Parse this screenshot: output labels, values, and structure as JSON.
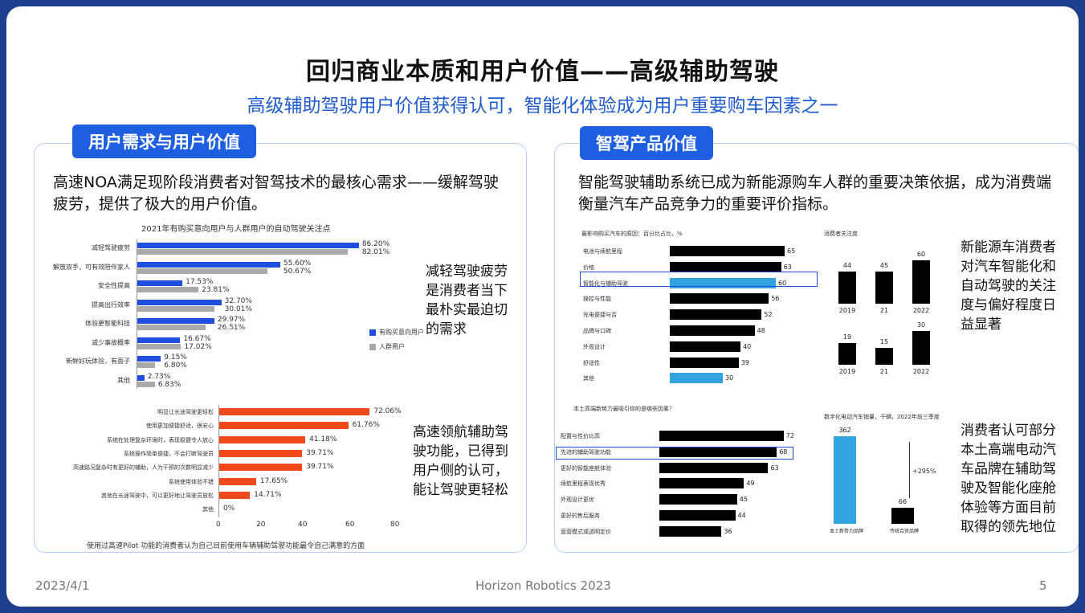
{
  "header": {
    "title": "回归商业本质和用户价值——高级辅助驾驶",
    "subtitle": "高级辅助驾驶用户价值获得认可，智能化体验成为用户重要购车因素之一"
  },
  "left_panel": {
    "tag": "用户需求与用户价值",
    "description": "高速NOA满足现阶段消费者对智驾技术的最核心需求——缓解驾驶疲劳，提供了极大的用户价值。",
    "chart1": {
      "title": "2021年有购买意向用户与人群用户的自动驾驶关注点",
      "rows": [
        {
          "label": "减轻驾驶疲劳",
          "v1": "86.20%",
          "v2": "82.01%"
        },
        {
          "label": "解放双手，可有效陪伴家人",
          "v1": "55.60%",
          "v2": "50.67%"
        },
        {
          "label": "安全性提高",
          "v1": "17.53%",
          "v2": "23.81%"
        },
        {
          "label": "提高出行效率",
          "v1": "32.70%",
          "v2": "30.01%"
        },
        {
          "label": "体验更智能科技",
          "v1": "29.97%",
          "v2": "26.51%"
        },
        {
          "label": "减少事故概率",
          "v1": "16.67%",
          "v2": "17.02%"
        },
        {
          "label": "新鲜好玩体验，有面子",
          "v1": "9.15%",
          "v2": "6.80%"
        },
        {
          "label": "其他",
          "v1": "2.73%",
          "v2": "6.83%"
        }
      ],
      "legend": [
        "有购买意向用户",
        "人群用户"
      ],
      "note": "减轻驾驶疲劳是消费者当下最朴实最迫切的需求",
      "colors": {
        "primary": "#1f4fe0",
        "secondary": "#aaaaaa"
      }
    },
    "chart2": {
      "rows": [
        {
          "label": "明显让长途驾驶更轻松",
          "v": "72.06%"
        },
        {
          "label": "使用更加便捷舒适，很安心",
          "v": "61.76%"
        },
        {
          "label": "系统在处理复杂环境时，表现稳健令人放心",
          "v": "41.18%"
        },
        {
          "label": "系统操作简单便捷，不会打断驾驶员",
          "v": "39.71%"
        },
        {
          "label": "高速路况复杂时有更好的辅助，人为干预的次数明显减少",
          "v": "39.71%"
        },
        {
          "label": "系统使用体验不错",
          "v": "17.65%"
        },
        {
          "label": "其他在长途驾驶中，可以更好地让驾驶员放松",
          "v": "14.71%"
        },
        {
          "label": "其他",
          "v": "0%"
        }
      ],
      "ticks": [
        "0",
        "20",
        "40",
        "60",
        "80"
      ],
      "caption": "使用过高速Pilot 功能的消费者认为自己目前使用车辆辅助驾驶功能最令自己满意的方面",
      "note": "高速领航辅助驾驶功能，已得到用户侧的认可，能让驾驶更轻松",
      "color": "#f04a1c"
    }
  },
  "right_panel": {
    "tag": "智驾产品价值",
    "description": "智能驾驶辅助系统已成为新能源购车人群的重要决策依据，成为消费端衡量汽车产品竞争力的重要评价指标。",
    "chart1": {
      "title": "最影响购买汽车的原因：百分比占比，%",
      "side_title": "消费者关注度",
      "rows": [
        {
          "label": "电池与续航里程",
          "v": "65"
        },
        {
          "label": "价格",
          "v": "63"
        },
        {
          "label": "智能化与辅助驾驶",
          "v": "60"
        },
        {
          "label": "操控与性能",
          "v": "56"
        },
        {
          "label": "充电便捷与否",
          "v": "52"
        },
        {
          "label": "品牌与口碑",
          "v": "48"
        },
        {
          "label": "外观设计",
          "v": "40"
        },
        {
          "label": "舒适性",
          "v": "39"
        },
        {
          "label": "其他",
          "v": "30"
        }
      ],
      "columns_top": [
        {
          "year": "2019",
          "v": "44"
        },
        {
          "year": "21",
          "v": "45"
        },
        {
          "year": "2022",
          "v": "60"
        }
      ],
      "columns_bottom": [
        {
          "year": "2019",
          "v": "19"
        },
        {
          "year": "21",
          "v": "15"
        },
        {
          "year": "2022",
          "v": "30"
        }
      ],
      "note": "新能源车消费者对汽车智能化和自动驾驶的关注度与偏好程度日益显著"
    },
    "chart2": {
      "title": "本土高端新势力最吸引你的是哪些因素？",
      "side_title": "数字化电动汽车销量，千辆，2022年前三季度",
      "rows": [
        {
          "label": "配置与性价比高",
          "v": "72"
        },
        {
          "label": "先进的辅助驾驶功能",
          "v": "68"
        },
        {
          "label": "更好的智能座舱体验",
          "v": "63"
        },
        {
          "label": "续航里程表现优秀",
          "v": "49"
        },
        {
          "label": "外观设计更优",
          "v": "45"
        },
        {
          "label": "更好的售后服务",
          "v": "44"
        },
        {
          "label": "直营模式或透明定价",
          "v": "36"
        }
      ],
      "columns": [
        {
          "label": "本土新势力品牌",
          "v": "362"
        },
        {
          "label": "传统合资品牌",
          "v": "66"
        }
      ],
      "growth": "+295%",
      "note": "消费者认可部分本土高端电动汽车品牌在辅助驾驶及智能化座舱体验等方面目前取得的领先地位"
    }
  },
  "footer": {
    "date": "2023/4/1",
    "company": "Horizon Robotics 2023",
    "page": "5"
  }
}
